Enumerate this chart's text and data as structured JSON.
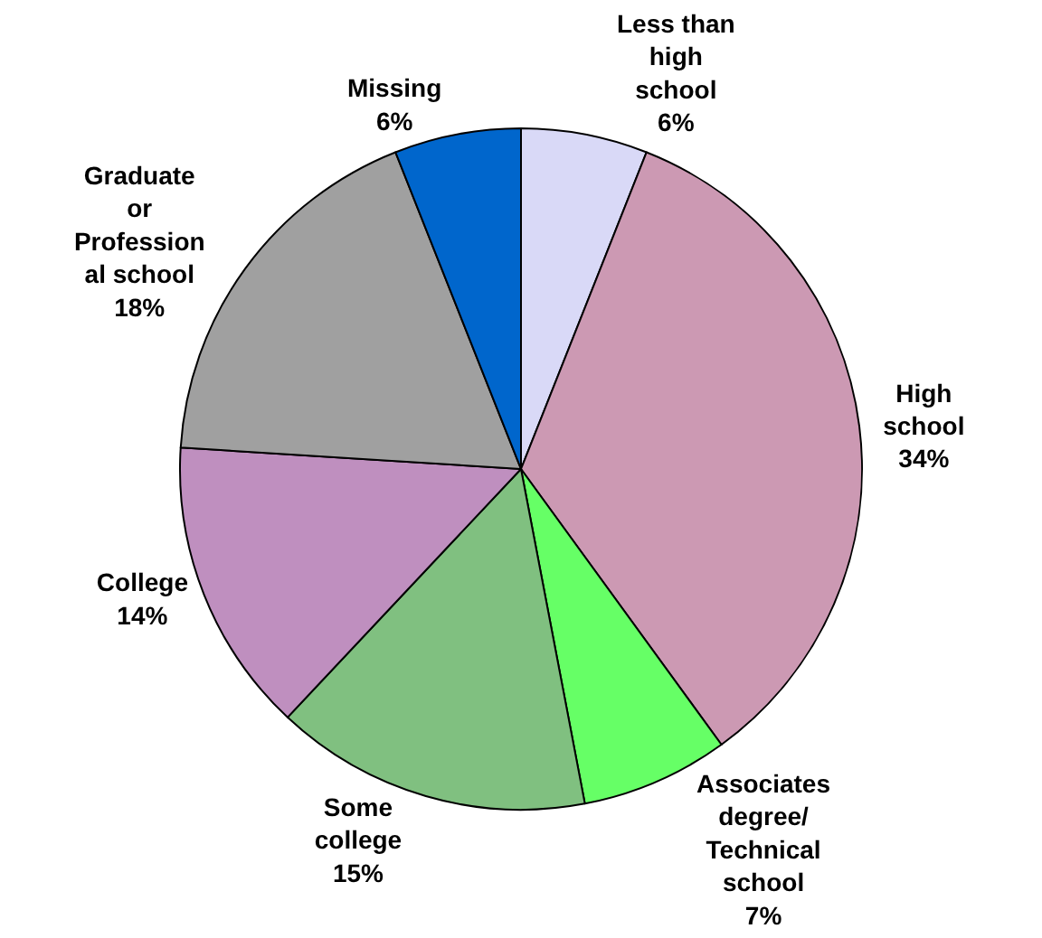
{
  "chart_data": {
    "type": "pie",
    "categories": [
      "Less than\nhigh\nschool",
      "High\nschool",
      "Associates\ndegree/\nTechnical\nschool",
      "Some\ncollege",
      "College",
      "Graduate\nor\nProfession\nal school",
      "Missing"
    ],
    "values": [
      6,
      34,
      7,
      15,
      14,
      18,
      6
    ],
    "value_labels": [
      "6%",
      "34%",
      "7%",
      "15%",
      "14%",
      "18%",
      "6%"
    ],
    "colors": [
      "#d9d9f7",
      "#cc99b3",
      "#66ff66",
      "#80c080",
      "#bf8fbf",
      "#a0a0a0",
      "#0066cc"
    ],
    "legend": false
  }
}
